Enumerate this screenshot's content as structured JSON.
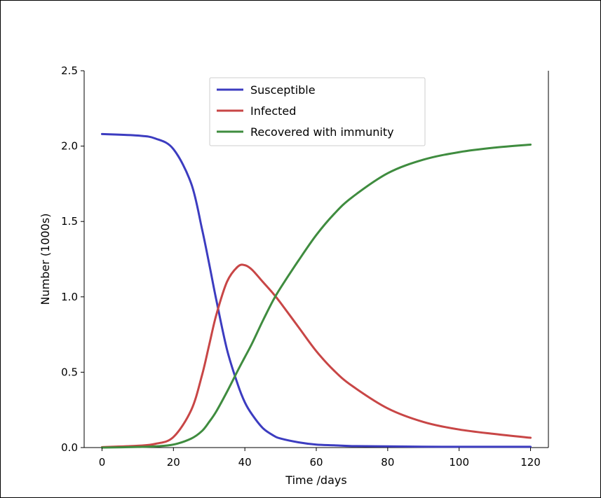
{
  "chart_data": {
    "type": "line",
    "xlabel": "Time /days",
    "ylabel": "Number (1000s)",
    "xlim": [
      -5,
      125
    ],
    "ylim": [
      0,
      2.5
    ],
    "xticks": [
      0,
      20,
      40,
      60,
      80,
      100,
      120
    ],
    "xtick_labels": [
      "0",
      "20",
      "40",
      "60",
      "80",
      "100",
      "120"
    ],
    "yticks": [
      0,
      0.5,
      1.0,
      1.5,
      2.0,
      2.5
    ],
    "ytick_labels": [
      "0.0",
      "0.5",
      "1.0",
      "1.5",
      "2.0",
      "2.5"
    ],
    "legend_position": "top-center",
    "grid": false,
    "x": [
      0,
      10,
      15,
      20,
      25,
      28,
      30,
      32,
      35,
      38,
      40,
      42,
      45,
      48,
      50,
      55,
      60,
      65,
      70,
      80,
      90,
      100,
      110,
      120
    ],
    "series": [
      {
        "name": "Susceptible",
        "color": "#3c3cc0",
        "values": [
          2.08,
          2.07,
          2.05,
          1.98,
          1.75,
          1.45,
          1.22,
          0.98,
          0.65,
          0.42,
          0.3,
          0.22,
          0.13,
          0.08,
          0.06,
          0.035,
          0.02,
          0.015,
          0.01,
          0.008,
          0.006,
          0.005,
          0.005,
          0.005
        ]
      },
      {
        "name": "Infected",
        "color": "#c84646",
        "values": [
          0.003,
          0.012,
          0.025,
          0.07,
          0.25,
          0.48,
          0.68,
          0.88,
          1.1,
          1.2,
          1.21,
          1.18,
          1.1,
          1.02,
          0.96,
          0.8,
          0.64,
          0.51,
          0.41,
          0.26,
          0.17,
          0.12,
          0.09,
          0.065
        ]
      },
      {
        "name": "Recovered with immunity",
        "color": "#3f8c3f",
        "values": [
          0.0,
          0.004,
          0.008,
          0.02,
          0.06,
          0.11,
          0.17,
          0.24,
          0.37,
          0.51,
          0.6,
          0.69,
          0.84,
          0.98,
          1.06,
          1.24,
          1.41,
          1.55,
          1.66,
          1.82,
          1.91,
          1.96,
          1.99,
          2.01
        ]
      }
    ]
  }
}
